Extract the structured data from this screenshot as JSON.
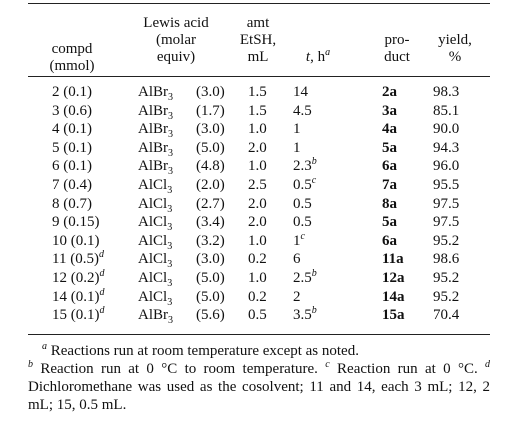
{
  "header": {
    "compd": [
      "compd",
      "(mmol)"
    ],
    "lewis_acid": [
      "Lewis acid",
      "(molar",
      "equiv)"
    ],
    "amt": [
      "amt",
      "EtSH,",
      "mL"
    ],
    "time": {
      "t": "t",
      "rest": ", h",
      "sup": "a"
    },
    "product": [
      "pro-",
      "duct"
    ],
    "yield": [
      "yield,",
      "%"
    ]
  },
  "rows": [
    {
      "compd": "2 (0.1)",
      "acid": "AlBr",
      "acid_sub": "3",
      "equiv": "(3.0)",
      "etsh": "1.5",
      "time": "14",
      "product": "2a",
      "yield": "98.3"
    },
    {
      "compd": "3 (0.6)",
      "acid": "AlBr",
      "acid_sub": "3",
      "equiv": "(1.7)",
      "etsh": "1.5",
      "time": "4.5",
      "product": "3a",
      "yield": "85.1"
    },
    {
      "compd": "4 (0.1)",
      "acid": "AlBr",
      "acid_sub": "3",
      "equiv": "(3.0)",
      "etsh": "1.0",
      "time": "1",
      "product": "4a",
      "yield": "90.0"
    },
    {
      "compd": "5 (0.1)",
      "acid": "AlBr",
      "acid_sub": "3",
      "equiv": "(5.0)",
      "etsh": "2.0",
      "time": "1",
      "product": "5a",
      "yield": "94.3"
    },
    {
      "compd": "6 (0.1)",
      "acid": "AlBr",
      "acid_sub": "3",
      "equiv": "(4.8)",
      "etsh": "1.0",
      "time": "2.3",
      "time_sup": "b",
      "product": "6a",
      "yield": "96.0"
    },
    {
      "compd": "7 (0.4)",
      "acid": "AlCl",
      "acid_sub": "3",
      "equiv": "(2.0)",
      "etsh": "2.5",
      "time": "0.5",
      "time_sup": "c",
      "product": "7a",
      "yield": "95.5"
    },
    {
      "compd": "8 (0.7)",
      "acid": "AlCl",
      "acid_sub": "3",
      "equiv": "(2.7)",
      "etsh": "2.0",
      "time": "0.5",
      "product": "8a",
      "yield": "97.5"
    },
    {
      "compd": "9 (0.15)",
      "acid": "AlCl",
      "acid_sub": "3",
      "equiv": "(3.4)",
      "etsh": "2.0",
      "time": "0.5",
      "product": "5a",
      "yield": "97.5"
    },
    {
      "compd": "10 (0.1)",
      "acid": "AlCl",
      "acid_sub": "3",
      "equiv": "(3.2)",
      "etsh": "1.0",
      "time": "1",
      "time_sup": "c",
      "product": "6a",
      "yield": "95.2"
    },
    {
      "compd": "11 (0.5)",
      "compd_sup": "d",
      "acid": "AlCl",
      "acid_sub": "3",
      "equiv": "(3.0)",
      "etsh": "0.2",
      "time": "6",
      "product": "11a",
      "yield": "98.6"
    },
    {
      "compd": "12 (0.2)",
      "compd_sup": "d",
      "acid": "AlCl",
      "acid_sub": "3",
      "equiv": "(5.0)",
      "etsh": "1.0",
      "time": "2.5",
      "time_sup": "b",
      "product": "12a",
      "yield": "95.2"
    },
    {
      "compd": "14 (0.1)",
      "compd_sup": "d",
      "acid": "AlCl",
      "acid_sub": "3",
      "equiv": "(5.0)",
      "etsh": "0.2",
      "time": "2",
      "product": "14a",
      "yield": "95.2"
    },
    {
      "compd": "15 (0.1)",
      "compd_sup": "d",
      "acid": "AlBr",
      "acid_sub": "3",
      "equiv": "(5.6)",
      "etsh": "0.5",
      "time": "3.5",
      "time_sup": "b",
      "product": "15a",
      "yield": "70.4"
    }
  ],
  "footnotes": [
    {
      "mark": "a",
      "text": "Reactions run at room temperature except as noted."
    },
    {
      "mark": "b",
      "text": "Reaction run at 0 °C to room temperature."
    },
    {
      "mark": "c",
      "text": "Reaction run at 0 °C."
    },
    {
      "mark": "d",
      "text": "Dichloromethane was used as the cosolvent; 11 and 14, each 3 mL; 12, 2 mL; 15, 0.5 mL."
    }
  ]
}
